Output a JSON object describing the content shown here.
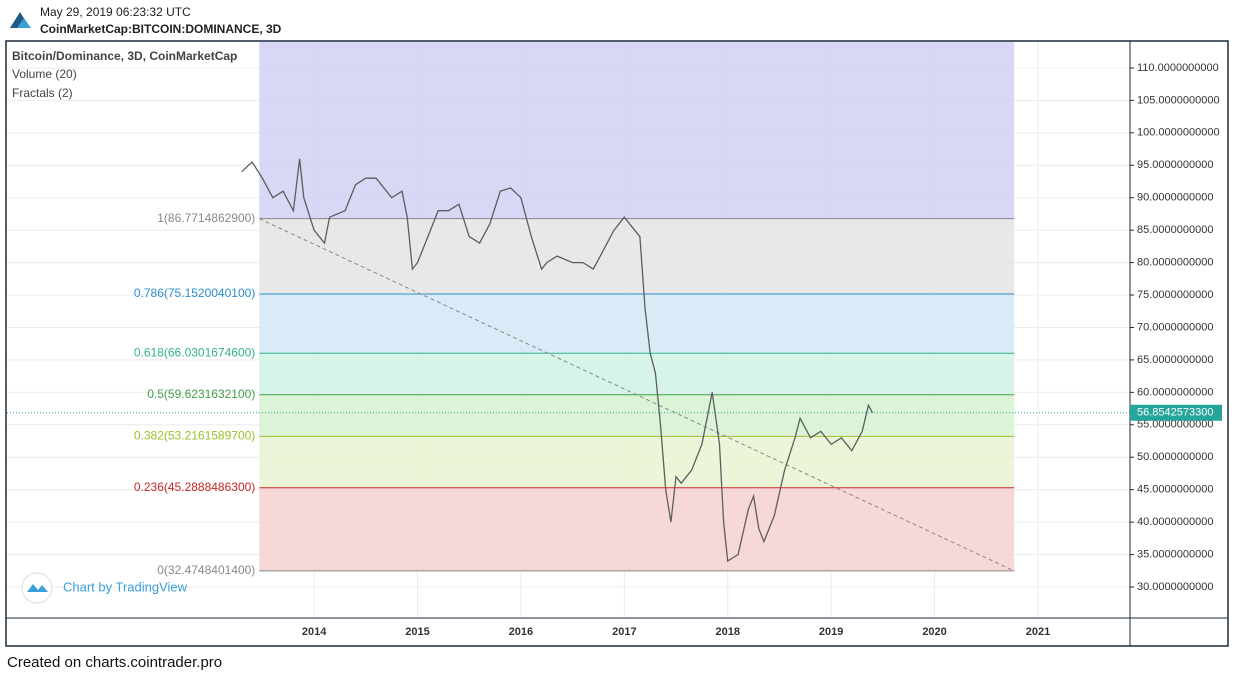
{
  "header": {
    "timestamp": "May 29, 2019 06:23:32 UTC",
    "symbol": "CoinMarketCap:BITCOIN:DOMINANCE, 3D"
  },
  "footer": "Created on charts.cointrader.pro",
  "watermark": "Chart by TradingView",
  "chart_data": {
    "type": "line",
    "title": "Bitcoin/Dominance, 3D, CoinMarketCap",
    "indicators": [
      "Volume (20)",
      "Fractals (2)"
    ],
    "xlim": [
      2011.03,
      2021.89
    ],
    "xticks": [
      2014,
      2015,
      2016,
      2017,
      2018,
      2019,
      2020,
      2021
    ],
    "ylim": [
      25.22,
      114.0
    ],
    "yticks": [
      {
        "value": 110,
        "label": "110.0000000000"
      },
      {
        "value": 105,
        "label": "105.0000000000"
      },
      {
        "value": 100,
        "label": "100.0000000000"
      },
      {
        "value": 95,
        "label": "95.0000000000"
      },
      {
        "value": 90,
        "label": "90.0000000000"
      },
      {
        "value": 85,
        "label": "85.0000000000"
      },
      {
        "value": 80,
        "label": "80.0000000000"
      },
      {
        "value": 75,
        "label": "75.0000000000"
      },
      {
        "value": 70,
        "label": "70.0000000000"
      },
      {
        "value": 65,
        "label": "65.0000000000"
      },
      {
        "value": 60,
        "label": "60.0000000000"
      },
      {
        "value": 55,
        "label": "55.0000000000"
      },
      {
        "value": 50,
        "label": "50.0000000000"
      },
      {
        "value": 45,
        "label": "45.0000000000"
      },
      {
        "value": 40,
        "label": "40.0000000000"
      },
      {
        "value": 35,
        "label": "35.0000000000"
      },
      {
        "value": 30,
        "label": "30.0000000000"
      }
    ],
    "last_price": {
      "value": 56.85425733,
      "label": "56.8542573300",
      "color": "#26a69a"
    },
    "fib_range": [
      2013.47,
      2020.77
    ],
    "fib_levels": [
      {
        "value": 86.77148629,
        "label": "1(86.7714862900)",
        "color": "#888888",
        "band": "#e6e6e6"
      },
      {
        "value": 75.15200401,
        "label": "0.786(75.1520040100)",
        "color": "#2f8fcf",
        "band": "#d5e9f5"
      },
      {
        "value": 66.03016746,
        "label": "0.618(66.0301674600)",
        "color": "#2fb38a",
        "band": "#d3f3e7"
      },
      {
        "value": 59.62316321,
        "label": "0.5(59.6231632100)",
        "color": "#43a047",
        "band": "#d7f2d3"
      },
      {
        "value": 53.21615897,
        "label": "0.382(53.2161589700)",
        "color": "#9bbf2a",
        "band": "#ebf4d4"
      },
      {
        "value": 45.28884863,
        "label": "0.236(45.2888486300)",
        "color": "#c62828",
        "band": "#f5d4d4"
      },
      {
        "value": 32.47484014,
        "label": "0(32.4748401400)",
        "color": "#888888",
        "band": null
      }
    ],
    "top_band": "#d4d4f5",
    "trendline": {
      "x": [
        2013.47,
        2020.77
      ],
      "values": [
        86.77,
        32.47
      ],
      "color": "#888888"
    },
    "series": [
      {
        "name": "Bitcoin/Dominance",
        "color": "#5d5d5d",
        "x": [
          2013.3,
          2013.4,
          2013.5,
          2013.6,
          2013.7,
          2013.8,
          2013.86,
          2013.9,
          2014.0,
          2014.1,
          2014.15,
          2014.3,
          2014.4,
          2014.5,
          2014.6,
          2014.65,
          2014.75,
          2014.85,
          2014.9,
          2014.95,
          2015.0,
          2015.1,
          2015.2,
          2015.3,
          2015.4,
          2015.5,
          2015.6,
          2015.7,
          2015.8,
          2015.9,
          2016.0,
          2016.1,
          2016.2,
          2016.25,
          2016.35,
          2016.5,
          2016.6,
          2016.7,
          2016.8,
          2016.9,
          2017.0,
          2017.1,
          2017.15,
          2017.2,
          2017.25,
          2017.3,
          2017.35,
          2017.4,
          2017.45,
          2017.5,
          2017.55,
          2017.65,
          2017.75,
          2017.85,
          2017.92,
          2017.96,
          2018.0,
          2018.1,
          2018.2,
          2018.25,
          2018.3,
          2018.35,
          2018.45,
          2018.55,
          2018.65,
          2018.7,
          2018.8,
          2018.9,
          2019.0,
          2019.1,
          2019.2,
          2019.3,
          2019.36,
          2019.4
        ],
        "values": [
          94,
          95.5,
          93,
          90,
          91,
          88,
          96,
          90,
          85,
          83,
          87,
          88,
          92,
          93,
          93,
          92,
          90,
          91,
          87,
          79,
          80,
          84,
          88,
          88,
          89,
          84,
          83,
          86,
          91,
          91.5,
          90,
          84,
          79,
          80,
          81,
          80,
          80,
          79,
          82,
          85,
          87,
          85,
          84,
          73,
          66,
          63,
          55,
          45,
          40,
          47,
          46,
          48,
          52,
          60,
          52,
          40,
          34,
          35,
          42,
          44,
          39,
          37,
          41,
          48,
          53,
          56,
          53,
          54,
          52,
          53,
          51,
          54,
          58,
          56.85
        ]
      }
    ]
  }
}
